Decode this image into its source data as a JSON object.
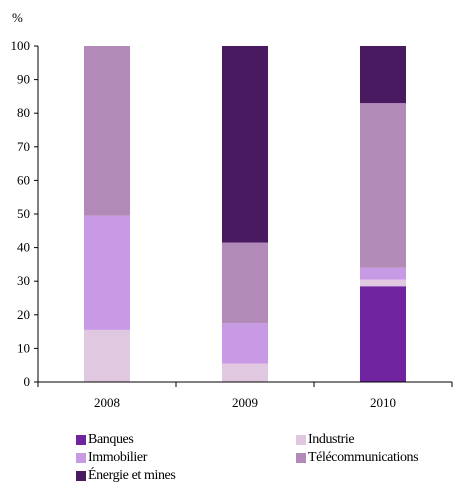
{
  "chart_data": {
    "type": "bar",
    "stacked": true,
    "ylabel": "%",
    "xlabel": "",
    "ylim": [
      0,
      100
    ],
    "yticks": [
      0,
      10,
      20,
      30,
      40,
      50,
      60,
      70,
      80,
      90,
      100
    ],
    "categories": [
      "2008",
      "2009",
      "2010"
    ],
    "grid": false,
    "legend_position": "bottom",
    "series": [
      {
        "name": "Banques",
        "color": "#7024a0",
        "values": [
          0,
          0,
          28.5
        ]
      },
      {
        "name": "Industrie",
        "color": "#e0c8e0",
        "values": [
          15.5,
          5.5,
          2.0
        ]
      },
      {
        "name": "Immobilier",
        "color": "#c89ae6",
        "values": [
          34,
          12,
          3.5
        ]
      },
      {
        "name": "Télécommunications",
        "color": "#b28ab8",
        "values": [
          50.5,
          24,
          49
        ]
      },
      {
        "name": "Énergie et mines",
        "color": "#4a1a60",
        "values": [
          0,
          58.5,
          17
        ]
      }
    ]
  }
}
